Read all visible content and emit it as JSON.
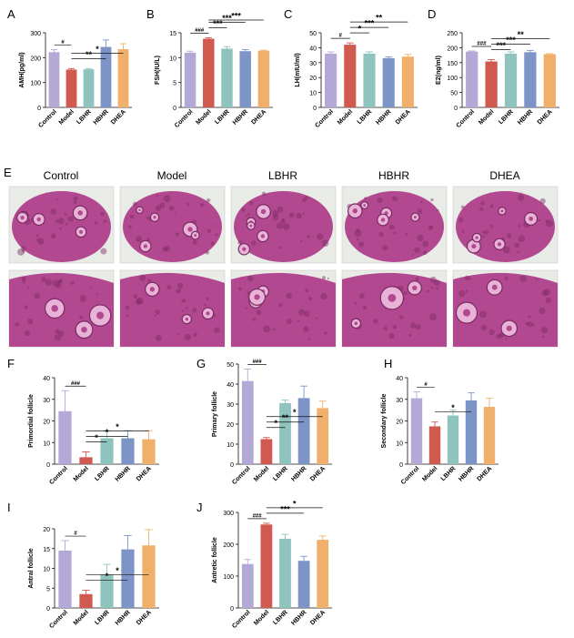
{
  "colors": {
    "Control": "#b4a8d6",
    "Model": "#d05a4f",
    "LBHR": "#8ec4bd",
    "HBHR": "#7d94c6",
    "DHEA": "#f0b06c",
    "tissue": "#b2488f",
    "tissue_dark": "#7a2a64",
    "tissue_light": "#e8b3d6",
    "text": "#111111"
  },
  "histology": {
    "panel_label": "E",
    "columns": [
      "Control",
      "Model",
      "LBHR",
      "HBHR",
      "DHEA"
    ]
  },
  "chart_data": [
    {
      "panel": "A",
      "type": "bar",
      "categories": [
        "Control",
        "Model",
        "LBHR",
        "HBHR",
        "DHEA"
      ],
      "values": [
        222,
        152,
        153,
        243,
        234
      ],
      "errors": [
        10,
        4,
        3,
        28,
        22
      ],
      "ylabel": "AMH(pg/ml)",
      "ylim": [
        0,
        300
      ],
      "yticks": [
        0,
        100,
        200,
        300
      ],
      "annotations": [
        {
          "from": 0,
          "to": 1,
          "text": "#"
        },
        {
          "from": 1,
          "to": 3,
          "text": "**"
        },
        {
          "from": 1,
          "to": 4,
          "text": "*"
        }
      ]
    },
    {
      "panel": "B",
      "type": "bar",
      "categories": [
        "Control",
        "Model",
        "LBHR",
        "HBHR",
        "DHEA"
      ],
      "values": [
        11.0,
        13.8,
        11.8,
        11.3,
        11.4
      ],
      "errors": [
        0.3,
        0.2,
        0.4,
        0.3,
        0.1
      ],
      "ylabel": "FSH(IU/L)",
      "ylim": [
        0,
        15
      ],
      "yticks": [
        0,
        5,
        10,
        15
      ],
      "annotations": [
        {
          "from": 0,
          "to": 1,
          "text": "###"
        },
        {
          "from": 1,
          "to": 2,
          "text": "***"
        },
        {
          "from": 1,
          "to": 3,
          "text": "***"
        },
        {
          "from": 1,
          "to": 4,
          "text": "***"
        }
      ]
    },
    {
      "panel": "C",
      "type": "bar",
      "categories": [
        "Control",
        "Model",
        "LBHR",
        "HBHR",
        "DHEA"
      ],
      "values": [
        36,
        42,
        36,
        33,
        34
      ],
      "errors": [
        1.2,
        1.2,
        1.2,
        0.8,
        1.5
      ],
      "ylabel": "LH(mIU/ml)",
      "ylim": [
        0,
        50
      ],
      "yticks": [
        0,
        10,
        20,
        30,
        40,
        50
      ],
      "annotations": [
        {
          "from": 0,
          "to": 1,
          "text": "#"
        },
        {
          "from": 1,
          "to": 2,
          "text": "*"
        },
        {
          "from": 1,
          "to": 3,
          "text": "***"
        },
        {
          "from": 1,
          "to": 4,
          "text": "**"
        }
      ]
    },
    {
      "panel": "D",
      "type": "bar",
      "categories": [
        "Control",
        "Model",
        "LBHR",
        "HBHR",
        "DHEA"
      ],
      "values": [
        187,
        154,
        180,
        185,
        178
      ],
      "errors": [
        2,
        6,
        6,
        6,
        2
      ],
      "ylabel": "E2(ng/ml)",
      "ylim": [
        0,
        250
      ],
      "yticks": [
        0,
        50,
        100,
        150,
        200,
        250
      ],
      "annotations": [
        {
          "from": 0,
          "to": 1,
          "text": "###"
        },
        {
          "from": 1,
          "to": 2,
          "text": "***"
        },
        {
          "from": 1,
          "to": 3,
          "text": "***"
        },
        {
          "from": 1,
          "to": 4,
          "text": "**"
        }
      ]
    },
    {
      "panel": "F",
      "type": "bar",
      "categories": [
        "Control",
        "Model",
        "LBHR",
        "HBHR",
        "DHEA"
      ],
      "values": [
        24.5,
        3.2,
        12,
        12,
        11.5
      ],
      "errors": [
        9.5,
        2.5,
        3.5,
        3.5,
        4
      ],
      "ylabel": "Primordial follicle",
      "ylim": [
        0,
        40
      ],
      "yticks": [
        0,
        10,
        20,
        30,
        40
      ],
      "annotations": [
        {
          "from": 0,
          "to": 1,
          "text": "###"
        },
        {
          "from": 1,
          "to": 2,
          "text": "*"
        },
        {
          "from": 1,
          "to": 3,
          "text": "*"
        },
        {
          "from": 1,
          "to": 4,
          "text": "*"
        }
      ]
    },
    {
      "panel": "G",
      "type": "bar",
      "categories": [
        "Control",
        "Model",
        "LBHR",
        "HBHR",
        "DHEA"
      ],
      "values": [
        41.5,
        12.5,
        30.5,
        33,
        28
      ],
      "errors": [
        6,
        0.8,
        1.5,
        6,
        3.5
      ],
      "ylabel": "Primary follicle",
      "ylim": [
        0,
        50
      ],
      "yticks": [
        0,
        10,
        20,
        30,
        40,
        50
      ],
      "annotations": [
        {
          "from": 0,
          "to": 1,
          "text": "###"
        },
        {
          "from": 1,
          "to": 2,
          "text": "*"
        },
        {
          "from": 1,
          "to": 3,
          "text": "**"
        },
        {
          "from": 1,
          "to": 4,
          "text": "*"
        }
      ]
    },
    {
      "panel": "H",
      "type": "bar",
      "categories": [
        "Control",
        "Model",
        "LBHR",
        "HBHR",
        "DHEA"
      ],
      "values": [
        30.5,
        17.5,
        22.5,
        29.5,
        26.5
      ],
      "errors": [
        3,
        2,
        2.5,
        3.5,
        4
      ],
      "ylabel": "Secondary follicle",
      "ylim": [
        0,
        40
      ],
      "yticks": [
        0,
        10,
        20,
        30,
        40
      ],
      "annotations": [
        {
          "from": 0,
          "to": 1,
          "text": "#"
        },
        {
          "from": 1,
          "to": 3,
          "text": "*"
        }
      ]
    },
    {
      "panel": "I",
      "type": "bar",
      "categories": [
        "Control",
        "Model",
        "LBHR",
        "HBHR",
        "DHEA"
      ],
      "values": [
        14.5,
        3.5,
        8.5,
        14.8,
        15.8
      ],
      "errors": [
        2.5,
        1,
        2.5,
        3.5,
        4
      ],
      "ylabel": "Antral follicle",
      "ylim": [
        0,
        20
      ],
      "yticks": [
        0,
        5,
        10,
        15,
        20
      ],
      "annotations": [
        {
          "from": 0,
          "to": 1,
          "text": "#"
        },
        {
          "from": 1,
          "to": 3,
          "text": "*"
        },
        {
          "from": 1,
          "to": 4,
          "text": "*"
        }
      ]
    },
    {
      "panel": "J",
      "type": "bar",
      "categories": [
        "Control",
        "Model",
        "LBHR",
        "HBHR",
        "DHEA"
      ],
      "values": [
        138,
        262,
        217,
        148,
        214
      ],
      "errors": [
        14,
        4,
        14,
        14,
        12
      ],
      "ylabel": "Antretic follicle",
      "ylim": [
        0,
        300
      ],
      "yticks": [
        0,
        100,
        200,
        300
      ],
      "annotations": [
        {
          "from": 0,
          "to": 1,
          "text": "###"
        },
        {
          "from": 1,
          "to": 3,
          "text": "***"
        },
        {
          "from": 1,
          "to": 4,
          "text": "*"
        }
      ]
    }
  ]
}
